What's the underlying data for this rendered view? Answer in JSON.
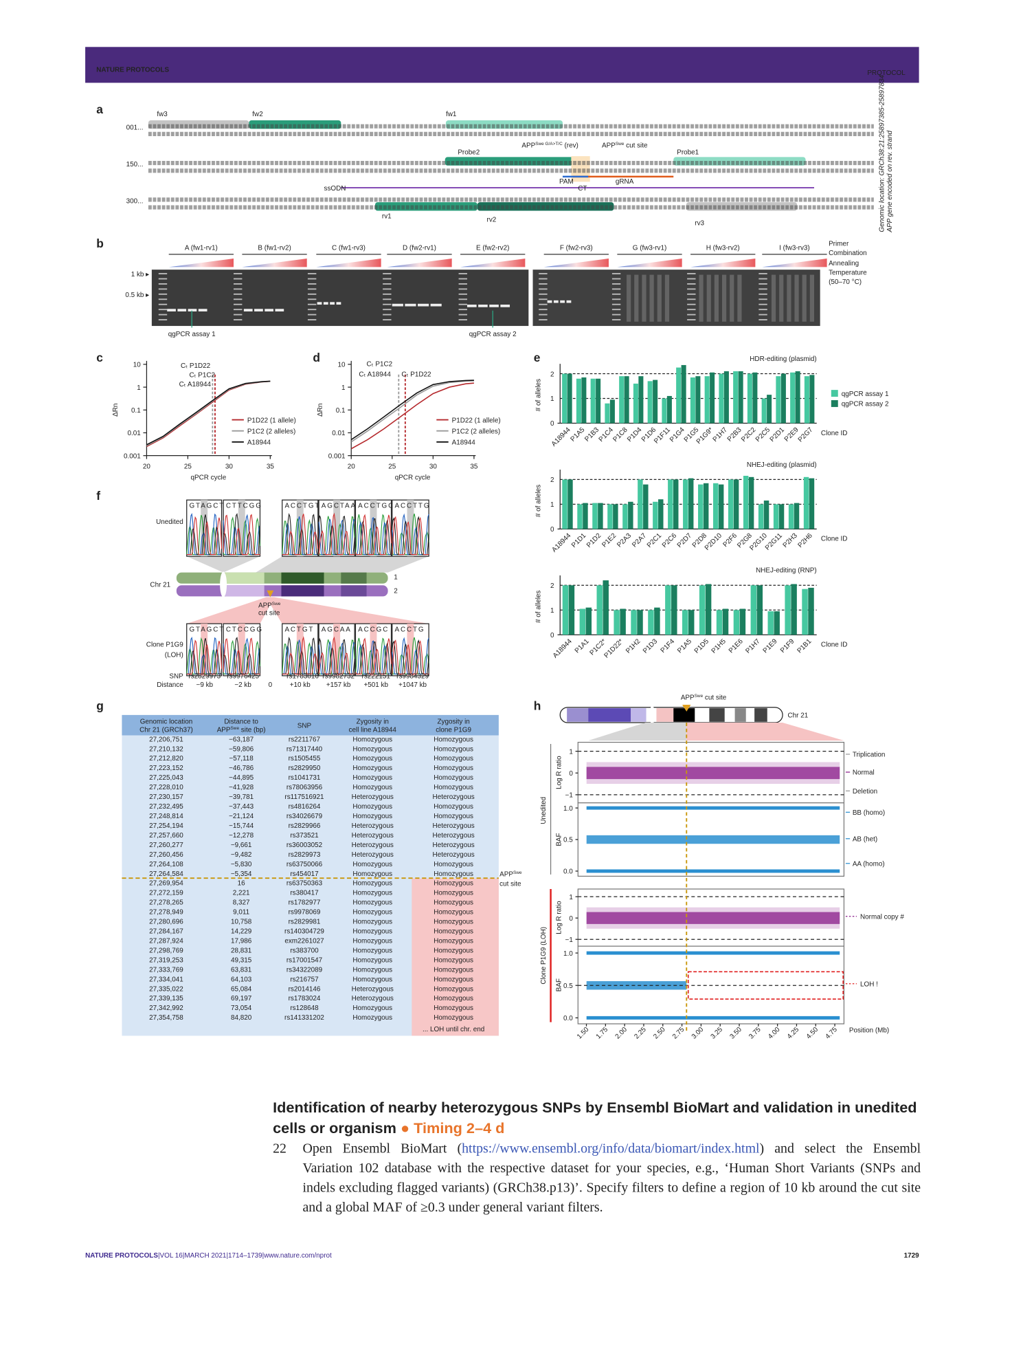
{
  "header": {
    "journal": "NATURE PROTOCOLS",
    "section": "PROTOCOL"
  },
  "figure": {
    "a": {
      "label": "a",
      "row_numbers": [
        "001...",
        "150...",
        "300..."
      ],
      "primers": [
        "fw3",
        "fw2",
        "fw1",
        "Probe2",
        "Probe1",
        "ssODN",
        "PAM",
        "gRNA",
        "rv1",
        "rv2",
        "rv3"
      ],
      "rev_primer": {
        "base": "APP",
        "sup": "Swe G/A>T/C",
        "after": " (rev)"
      },
      "cut_site": {
        "base": "APP",
        "sup": "Swe",
        "after": " cut site"
      },
      "ct": "CT",
      "side_note": [
        "Genomic location: GRCh38:21:25897385-25897834",
        "APP gene encoded on rev. strand"
      ]
    },
    "b": {
      "label": "b",
      "lanes": [
        "A (fw1-rv1)",
        "B (fw1-rv2)",
        "C (fw1-rv3)",
        "D (fw2-rv1)",
        "E (fw2-rv2)",
        "F (fw2-rv3)",
        "G (fw3-rv1)",
        "H (fw3-rv2)",
        "I (fw3-rv3)"
      ],
      "markers": [
        "1 kb ▸",
        "0.5 kb ▸"
      ],
      "legend": [
        "Primer",
        "Combination",
        "Annealing",
        "Temperature"
      ],
      "temp_range": "(50–70 °C)",
      "assays": [
        "qgPCR assay 1",
        "qgPCR assay 2"
      ]
    },
    "c": {
      "label": "c"
    },
    "d": {
      "label": "d"
    },
    "e": {
      "label": "e"
    },
    "f": {
      "label": "f",
      "unedited": "Unedited",
      "chr": "Chr 21",
      "homologs": [
        "1",
        "2"
      ],
      "cut_site": {
        "base": "APP",
        "sup": "Swe"
      },
      "cut_site_after": "cut site",
      "clone": [
        "Clone  P1G9",
        "(LOH)"
      ],
      "snp_label": "SNP",
      "distance_label": "Distance",
      "snps": [
        "rs2829973",
        "rs9976425",
        "rs1783016",
        "rs9982732",
        "rs222151",
        "rs9984329"
      ],
      "distances": [
        "−9 kb",
        "−2 kb",
        "0",
        "+10 kb",
        "+157 kb",
        "+501 kb",
        "+1047 kb"
      ],
      "top_bases": [
        "GTAGCT",
        "CTTCGG",
        "ACCTGT",
        "AGCTAA",
        "ACCTGC",
        "ACCTTG"
      ],
      "bottom_bases": [
        "GTAGCT",
        "CTCCGG",
        "ACTGT",
        "AGCAA",
        "ACCGC",
        "ACCTG"
      ]
    },
    "g": {
      "label": "g",
      "headers": [
        [
          "Genomic location",
          "Chr 21 (GRCh37)"
        ],
        [
          "Distance to",
          {
            "base": "APP",
            "sup": "Swe",
            "after": " site (bp)"
          }
        ],
        [
          "SNP"
        ],
        [
          "Zygosity in",
          "cell line A18944"
        ],
        [
          "Zygosity in",
          "clone P1G9"
        ]
      ],
      "rows": [
        [
          "27,206,751",
          "−63,187",
          "rs2211767",
          "Homozygous",
          "Homozygous"
        ],
        [
          "27,210,132",
          "−59,806",
          "rs71317440",
          "Homozygous",
          "Homozygous"
        ],
        [
          "27,212,820",
          "−57,118",
          "rs1505455",
          "Homozygous",
          "Homozygous"
        ],
        [
          "27,223,152",
          "−46,786",
          "rs2829950",
          "Homozygous",
          "Homozygous"
        ],
        [
          "27,225,043",
          "−44,895",
          "rs1041731",
          "Homozygous",
          "Homozygous"
        ],
        [
          "27,228,010",
          "−41,928",
          "rs78063956",
          "Homozygous",
          "Homozygous"
        ],
        [
          "27,230,157",
          "−39,781",
          "rs117516921",
          "Heterozygous",
          "Heterozygous"
        ],
        [
          "27,232,495",
          "−37,443",
          "rs4816264",
          "Homozygous",
          "Homozygous"
        ],
        [
          "27,248,814",
          "−21,124",
          "rs34026679",
          "Homozygous",
          "Homozygous"
        ],
        [
          "27,254,194",
          "−15,744",
          "rs2829966",
          "Heterozygous",
          "Heterozygous"
        ],
        [
          "27,257,660",
          "−12,278",
          "rs373521",
          "Heterozygous",
          "Heterozygous"
        ],
        [
          "27,260,277",
          "−9,661",
          "rs36003052",
          "Heterozygous",
          "Heterozygous"
        ],
        [
          "27,260,456",
          "−9,482",
          "rs2829973",
          "Heterozygous",
          "Heterozygous"
        ],
        [
          "27,264,108",
          "−5,830",
          "rs63750066",
          "Homozygous",
          "Homozygous"
        ],
        [
          "27,264,584",
          "−5,354",
          "rs454017",
          "Homozygous",
          "Homozygous"
        ],
        [
          "27,269,954",
          "16",
          "rs63750363",
          "Homozygous",
          "Homozygous"
        ],
        [
          "27,272,159",
          "2,221",
          "rs380417",
          "Homozygous",
          "Homozygous"
        ],
        [
          "27,278,265",
          "8,327",
          "rs1782977",
          "Homozygous",
          "Homozygous"
        ],
        [
          "27,278,949",
          "9,011",
          "rs9978069",
          "Homozygous",
          "Homozygous"
        ],
        [
          "27,280,696",
          "10,758",
          "rs2829981",
          "Homozygous",
          "Homozygous"
        ],
        [
          "27,284,167",
          "14,229",
          "rs140304729",
          "Homozygous",
          "Homozygous"
        ],
        [
          "27,287,924",
          "17,986",
          "exm2261027",
          "Homozygous",
          "Homozygous"
        ],
        [
          "27,298,769",
          "28,831",
          "rs383700",
          "Homozygous",
          "Homozygous"
        ],
        [
          "27,319,253",
          "49,315",
          "rs17001547",
          "Homozygous",
          "Homozygous"
        ],
        [
          "27,333,769",
          "63,831",
          "rs34322089",
          "Homozygous",
          "Homozygous"
        ],
        [
          "27,334,041",
          "64,103",
          "rs216757",
          "Homozygous",
          "Homozygous"
        ],
        [
          "27,335,022",
          "65,084",
          "rs2014146",
          "Heterozygous",
          "Homozygous"
        ],
        [
          "27,339,135",
          "69,197",
          "rs1783024",
          "Heterozygous",
          "Homozygous"
        ],
        [
          "27,342,992",
          "73,054",
          "rs128648",
          "Homozygous",
          "Homozygous"
        ],
        [
          "27,354,758",
          "84,820",
          "rs141331202",
          "Homozygous",
          "Homozygous"
        ]
      ],
      "cut_label": {
        "base": "APP",
        "sup": "Swe"
      },
      "cut_label_after": "cut site",
      "footnote": "... LOH until chr. end"
    },
    "h": {
      "label": "h",
      "chr": "Chr 21",
      "cut_site": {
        "base": "APP",
        "sup": "Swe",
        "after": " cut site"
      },
      "cut_site_mb": 2.81,
      "xlim": [
        1.39,
        4.87
      ],
      "xticks": [
        {
          "value": 1.5,
          "label": "1.50"
        },
        1.75,
        {
          "value": 2,
          "label": "2.00"
        },
        2.25,
        {
          "value": 2.5,
          "label": "2.50"
        },
        2.75,
        {
          "value": 3,
          "label": "3.00"
        },
        3.25,
        {
          "value": 3.5,
          "label": "3.50"
        },
        3.75,
        {
          "value": 4,
          "label": "4.00"
        },
        4.25,
        {
          "value": 4.5,
          "label": "4.50"
        },
        4.75
      ],
      "xlabel": "Position (Mb)",
      "log_r_label": "Log R ratio",
      "baf_label": "BAF",
      "log_r_ticks": [
        1,
        0,
        {
          "value": -1,
          "label": "−1"
        }
      ],
      "baf_ticks": [
        {
          "value": 1,
          "label": "1.0"
        },
        0.5,
        {
          "value": 0,
          "label": "0.0"
        }
      ],
      "unedited": "Unedited",
      "clone": "Clone P1G9 (LOH)",
      "legend_top": [
        "Triplication",
        "Normal",
        "Deletion",
        "BB (homo)",
        "AB (het)",
        "AA (homo)"
      ],
      "legend_bottom": [
        "Normal copy #",
        "LOH !"
      ]
    }
  },
  "chart_data": [
    {
      "type": "line",
      "log_y": true,
      "x": [
        20,
        22,
        24,
        26,
        28,
        30,
        32,
        34,
        35
      ],
      "xlim": [
        20,
        35
      ],
      "xticks": [
        20,
        25,
        30,
        35
      ],
      "ylim": [
        0.001,
        10
      ],
      "yticks": [
        0.001,
        0.01,
        0.1,
        1,
        10
      ],
      "xlabel": "qPCR cycle",
      "ylabel": "ΔRn",
      "series": [
        {
          "name": "P1D22 (1 allele)",
          "color": "#b5282c",
          "values": [
            0.0025,
            0.006,
            0.02,
            0.065,
            0.22,
            0.75,
            1.35,
            1.7,
            1.8
          ]
        },
        {
          "name": "P1C2 (2 alleles)",
          "color": "#999999",
          "values": [
            0.0027,
            0.0065,
            0.022,
            0.07,
            0.24,
            0.8,
            1.4,
            1.72,
            1.8
          ]
        },
        {
          "name": "A18944",
          "color": "#111111",
          "values": [
            0.003,
            0.007,
            0.024,
            0.078,
            0.26,
            0.85,
            1.45,
            1.75,
            1.82
          ]
        }
      ],
      "ct_lines": [
        {
          "value": 28.3,
          "color": "#b5282c"
        },
        {
          "value": 28.0,
          "color": "#999999"
        }
      ],
      "annotations": [
        {
          "text": "Cₜ P1D22",
          "color": "#b5282c"
        },
        {
          "text": "Cₜ P1C2",
          "color": "#888888"
        },
        {
          "text": "Cₜ A18944",
          "color": "#111111"
        }
      ]
    },
    {
      "type": "line",
      "log_y": true,
      "x": [
        20,
        22,
        24,
        26,
        28,
        30,
        32,
        34,
        35
      ],
      "xlim": [
        20,
        35
      ],
      "xticks": [
        20,
        25,
        30,
        35
      ],
      "ylim": [
        0.001,
        10
      ],
      "yticks": [
        0.001,
        0.01,
        0.1,
        1,
        10
      ],
      "xlabel": "qPCR cycle",
      "ylabel": "ΔRn",
      "series": [
        {
          "name": "P1D22 (1 allele)",
          "color": "#b5282c",
          "values": [
            0.002,
            0.005,
            0.015,
            0.05,
            0.17,
            0.52,
            1.0,
            1.4,
            1.5
          ]
        },
        {
          "name": "P1C2 (2 alleles)",
          "color": "#999999",
          "values": [
            0.004,
            0.012,
            0.04,
            0.13,
            0.45,
            1.1,
            1.6,
            1.85,
            1.9
          ]
        },
        {
          "name": "A18944",
          "color": "#111111",
          "values": [
            0.005,
            0.015,
            0.05,
            0.17,
            0.55,
            1.3,
            1.75,
            1.95,
            2.0
          ]
        }
      ],
      "ct_lines": [
        {
          "value": 26.6,
          "color": "#b5282c"
        },
        {
          "value": 25.8,
          "color": "#999999"
        }
      ],
      "annotations": [
        {
          "text": "Cₜ P1C2",
          "color": "#888888"
        },
        {
          "text": "Cₜ A18944",
          "color": "#111111"
        },
        {
          "text": "Cₜ P1D22",
          "color": "#b5282c"
        }
      ]
    },
    {
      "type": "bar",
      "title": "HDR-editing (plasmid)",
      "ylabel": "# of alleles",
      "xlabel": "Clone  ID",
      "ylim": [
        0,
        2.4
      ],
      "yticks": [
        0,
        1,
        2
      ],
      "categories": [
        "A18944",
        "P1A5",
        "P1B3",
        "P1C4",
        "P1C8",
        "P1D4",
        "P1D6",
        "P1F11",
        "P1G4",
        "P1G5",
        "P1G9*",
        "P1H7",
        "P2B3",
        "P2C2",
        "P2C5",
        "P2D1",
        "P2E9",
        "P2G7"
      ],
      "series": [
        {
          "name": "qgPCR assay 1",
          "color": "#46c8a0",
          "values": [
            2.0,
            1.8,
            1.8,
            0.8,
            1.9,
            1.6,
            1.7,
            1.0,
            2.25,
            1.85,
            1.9,
            2.0,
            2.1,
            2.0,
            1.0,
            1.9,
            2.05,
            1.9
          ]
        },
        {
          "name": "qgPCR assay 2",
          "color": "#1b7f5f",
          "values": [
            2.0,
            1.85,
            1.8,
            0.95,
            1.9,
            1.9,
            1.75,
            1.1,
            2.35,
            1.9,
            2.05,
            2.1,
            2.1,
            2.05,
            1.15,
            2.0,
            2.1,
            1.95
          ]
        }
      ]
    },
    {
      "type": "bar",
      "title": "NHEJ-editing (plasmid)",
      "ylabel": "# of alleles",
      "xlabel": "Clone  ID",
      "ylim": [
        0,
        2.4
      ],
      "yticks": [
        0,
        1,
        2
      ],
      "categories": [
        "A18944",
        "P1D1",
        "P1D2",
        "P1E2",
        "P2A3",
        "P2A7",
        "P2C1",
        "P2C6",
        "P2D7",
        "P2D8",
        "P2D10",
        "P2F6",
        "P2G8",
        "P2G10",
        "P2G11",
        "P2H3",
        "P2H6"
      ],
      "series": [
        {
          "color": "#46c8a0",
          "values": [
            2.0,
            1.0,
            1.05,
            1.0,
            1.0,
            2.0,
            1.1,
            2.0,
            2.0,
            1.8,
            1.85,
            2.0,
            2.15,
            1.0,
            1.0,
            1.0,
            2.1
          ]
        },
        {
          "color": "#1b7f5f",
          "values": [
            2.0,
            1.05,
            1.05,
            1.0,
            1.1,
            1.8,
            1.2,
            2.0,
            2.05,
            1.85,
            1.8,
            2.0,
            2.1,
            1.15,
            1.0,
            1.05,
            2.05
          ]
        }
      ]
    },
    {
      "type": "bar",
      "title": "NHEJ-editing (RNP)",
      "ylabel": "# of alleles",
      "xlabel": "Clone  ID",
      "ylim": [
        0,
        2.4
      ],
      "yticks": [
        0,
        1,
        2
      ],
      "categories": [
        "A18944",
        "P1A1",
        "P1C2*",
        "P1D22*",
        "P1H2",
        "P1D3",
        "P1F4",
        "P1A5",
        "P1D5",
        "P1H5",
        "P1E6",
        "P1H7",
        "P1E9",
        "P1F9",
        "P1B1"
      ],
      "series": [
        {
          "color": "#46c8a0",
          "values": [
            2.0,
            1.05,
            2.0,
            1.0,
            1.0,
            1.0,
            2.0,
            1.0,
            2.0,
            1.0,
            1.0,
            2.0,
            0.95,
            2.0,
            1.85
          ]
        },
        {
          "color": "#1b7f5f",
          "values": [
            2.0,
            1.1,
            2.2,
            1.05,
            1.0,
            1.1,
            2.0,
            1.0,
            2.05,
            1.05,
            1.05,
            2.0,
            0.95,
            2.05,
            1.9
          ]
        }
      ]
    }
  ],
  "text": {
    "heading": "Identification of nearby heterozygous SNPs by Ensembl BioMart and validation in unedited cells or organism",
    "timing_icon": "●",
    "timing": "Timing 2–4 d",
    "step": "22",
    "para_before": "Open Ensembl BioMart (",
    "url": "https://www.ensembl.org/info/data/biomart/index.html",
    "para_after": ") and select the Ensembl Variation 102 database with the respective dataset for your species, e.g., ‘Human Short Variants (SNPs and indels excluding flagged variants) (GRCh38.p13)’. Specify filters to define a region of 10 kb around the cut site and a global MAF of ≥0.3 under general variant filters."
  },
  "footer": {
    "journal": "NATURE PROTOCOLS",
    "separator": "|",
    "volume": "VOL 16",
    "date": "MARCH 2021",
    "pages": "1714–1739",
    "url": "www.nature.com/nprot",
    "page": "1729"
  }
}
